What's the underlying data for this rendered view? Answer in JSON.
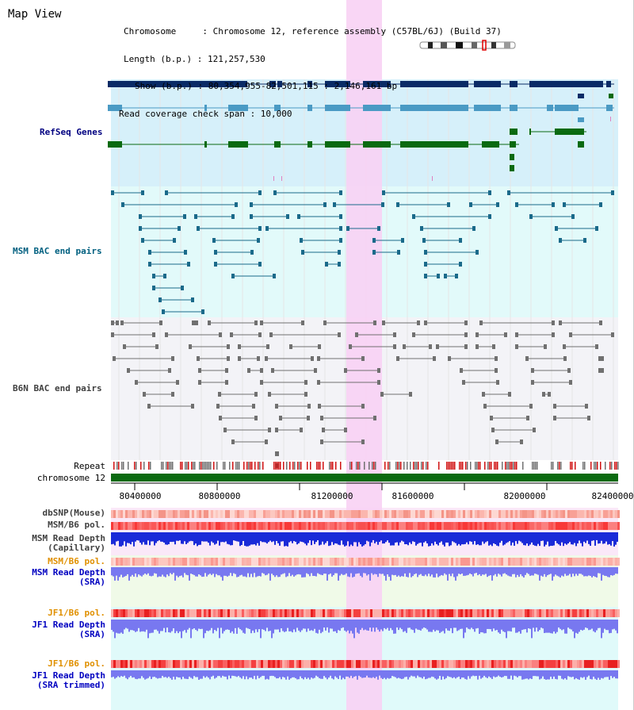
{
  "view": {
    "title": "Map View",
    "info": {
      "chromosome": "Chromosome     : Chromosome 12, reference assembly (C57BL/6J) (Build 37)",
      "length": "Length (b.p.) : 121,257,530",
      "show": "Show (b.p.) : 80,354,955-82,501,115 : 2,146,161 bp",
      "coverage": "Read coverage check span : 10,000"
    }
  },
  "tracks": {
    "refseq": "RefSeq Genes",
    "msm_bac": "MSM BAC end pairs",
    "b6n_bac": "B6N BAC end pairs",
    "repeat": "Repeat",
    "chromosome": "chromosome 12",
    "dbsnp": "dbSNP(Mouse)",
    "msm_pol": "MSM/B6 pol.",
    "msm_depth_cap_1": "MSM Read Depth",
    "msm_depth_cap_2": "(Capillary)",
    "msm_pol_2": "MSM/B6 pol.",
    "msm_depth_sra_1": "MSM Read Depth",
    "msm_depth_sra_2": "(SRA)",
    "jf1_pol": "JF1/B6 pol.",
    "jf1_depth_sra_1": "JF1 Read Depth",
    "jf1_depth_sra_2": "(SRA)",
    "jf1_pol_2": "JF1/B6 pol.",
    "jf1_depth_trim_1": "JF1 Read Depth",
    "jf1_depth_trim_2": "(SRA trimmed)"
  },
  "axis": {
    "ticks": [
      "80400000",
      "80800000",
      "81200000",
      "81600000",
      "82000000",
      "82400000"
    ]
  },
  "colors": {
    "highlight": "#f8d2f4",
    "refseq_bg": "#d6f0fa",
    "msm_bg": "#e2fafa",
    "b6n_bg": "#f3f3f7",
    "gene_dark": "#0a2b66",
    "gene_mid": "#4a9ac4",
    "gene_green": "#0a6a10",
    "msm_line": "#1a6a8a",
    "b6n_line": "#707070",
    "chrom_bar": "#0a6a10",
    "depth_blue": "#1a2ad8",
    "depth_light": "#7878f0",
    "lbl_dark": "#000000",
    "lbl_blue": "#000080",
    "lbl_teal": "#006080",
    "lbl_gray": "#404040",
    "lbl_orange": "#e09000",
    "lbl_sra": "#0000c0"
  }
}
